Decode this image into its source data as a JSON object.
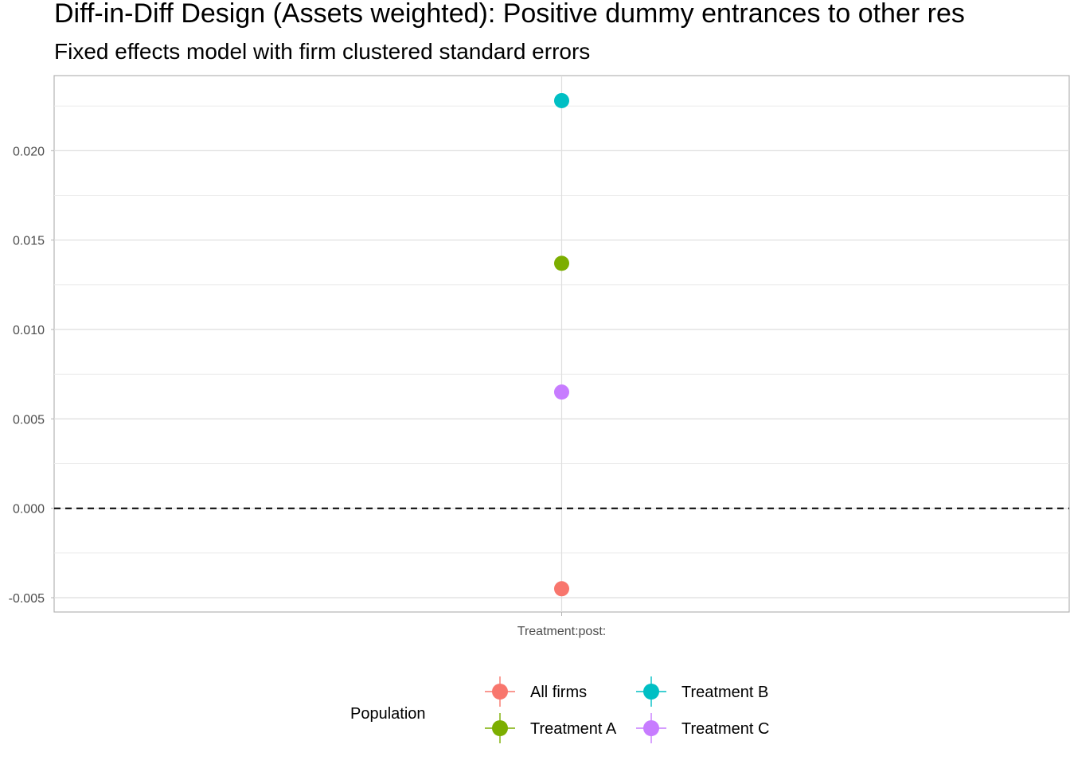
{
  "chart_data": {
    "type": "scatter",
    "title": "Diff-in-Diff Design (Assets weighted): Positive dummy entrances to other res",
    "subtitle": "Fixed effects model with firm clustered standard errors",
    "xlabel": "",
    "ylabel": "",
    "categories": [
      "Treatment:post:"
    ],
    "ylim": [
      -0.0058,
      0.0242
    ],
    "y_ticks": [
      -0.005,
      0.0,
      0.005,
      0.01,
      0.015,
      0.02
    ],
    "y_tick_labels": [
      "-0.005",
      "0.000",
      "0.005",
      "0.010",
      "0.015",
      "0.020"
    ],
    "reference_line": {
      "y": 0,
      "style": "dashed",
      "color": "#000000"
    },
    "grid": true,
    "legend": {
      "title": "Population",
      "position": "bottom",
      "entries": [
        "All firms",
        "Treatment A",
        "Treatment B",
        "Treatment C"
      ]
    },
    "series": [
      {
        "name": "All firms",
        "color": "#F8766D",
        "x": "Treatment:post:",
        "y": -0.0045
      },
      {
        "name": "Treatment A",
        "color": "#7CAE00",
        "x": "Treatment:post:",
        "y": 0.0137
      },
      {
        "name": "Treatment B",
        "color": "#00BFC4",
        "x": "Treatment:post:",
        "y": 0.0228
      },
      {
        "name": "Treatment C",
        "color": "#C77CFF",
        "x": "Treatment:post:",
        "y": 0.0065
      }
    ]
  }
}
